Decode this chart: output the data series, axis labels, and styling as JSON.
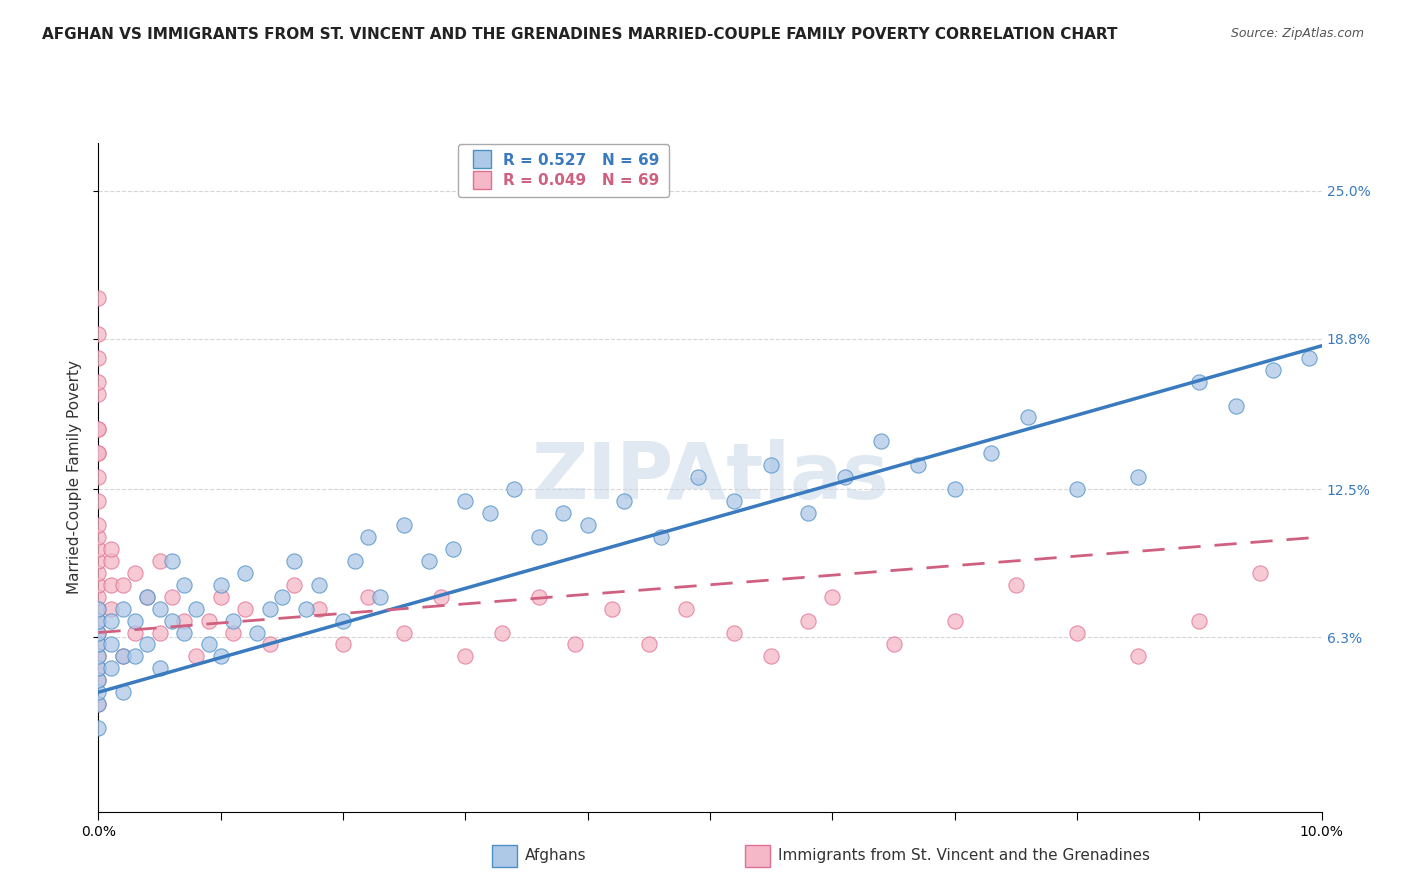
{
  "title": "AFGHAN VS IMMIGRANTS FROM ST. VINCENT AND THE GRENADINES MARRIED-COUPLE FAMILY POVERTY CORRELATION CHART",
  "source": "Source: ZipAtlas.com",
  "ylabel": "Married-Couple Family Poverty",
  "xlim": [
    0.0,
    10.0
  ],
  "ylim": [
    -1.0,
    27.0
  ],
  "ytick_positions": [
    6.3,
    12.5,
    18.8,
    25.0
  ],
  "ytick_labels": [
    "6.3%",
    "12.5%",
    "18.8%",
    "25.0%"
  ],
  "xtick_positions": [
    0.0,
    2.5,
    5.0,
    7.5,
    10.0
  ],
  "legend_r1": "R = 0.527",
  "legend_n1": "N = 69",
  "legend_r2": "R = 0.049",
  "legend_n2": "N = 69",
  "blue_fill": "#aec8e8",
  "blue_edge": "#4a90c4",
  "pink_fill": "#f4b8c8",
  "pink_edge": "#e07090",
  "blue_line": "#3a7abf",
  "pink_line": "#d06080",
  "watermark": "ZIPAtlas",
  "afghans_x": [
    0.0,
    0.0,
    0.0,
    0.0,
    0.0,
    0.0,
    0.0,
    0.0,
    0.0,
    0.0,
    0.1,
    0.1,
    0.1,
    0.2,
    0.2,
    0.2,
    0.3,
    0.3,
    0.4,
    0.4,
    0.5,
    0.5,
    0.6,
    0.6,
    0.7,
    0.7,
    0.8,
    0.9,
    1.0,
    1.0,
    1.1,
    1.2,
    1.3,
    1.4,
    1.5,
    1.6,
    1.7,
    1.8,
    2.0,
    2.1,
    2.2,
    2.3,
    2.5,
    2.7,
    2.9,
    3.0,
    3.2,
    3.4,
    3.6,
    3.8,
    4.0,
    4.3,
    4.6,
    4.9,
    5.2,
    5.5,
    5.8,
    6.1,
    6.4,
    6.7,
    7.0,
    7.3,
    7.6,
    8.0,
    8.5,
    9.0,
    9.3,
    9.6,
    9.9
  ],
  "afghans_y": [
    3.5,
    4.0,
    4.5,
    5.0,
    5.5,
    6.0,
    6.5,
    7.0,
    7.5,
    2.5,
    5.0,
    6.0,
    7.0,
    5.5,
    7.5,
    4.0,
    5.5,
    7.0,
    6.0,
    8.0,
    5.0,
    7.5,
    7.0,
    9.5,
    6.5,
    8.5,
    7.5,
    6.0,
    5.5,
    8.5,
    7.0,
    9.0,
    6.5,
    7.5,
    8.0,
    9.5,
    7.5,
    8.5,
    7.0,
    9.5,
    10.5,
    8.0,
    11.0,
    9.5,
    10.0,
    12.0,
    11.5,
    12.5,
    10.5,
    11.5,
    11.0,
    12.0,
    10.5,
    13.0,
    12.0,
    13.5,
    11.5,
    13.0,
    14.5,
    13.5,
    12.5,
    14.0,
    15.5,
    12.5,
    13.0,
    17.0,
    16.0,
    17.5,
    18.0
  ],
  "svg_x": [
    0.0,
    0.0,
    0.0,
    0.0,
    0.0,
    0.0,
    0.0,
    0.0,
    0.0,
    0.0,
    0.0,
    0.0,
    0.0,
    0.0,
    0.0,
    0.0,
    0.0,
    0.0,
    0.0,
    0.0,
    0.1,
    0.1,
    0.1,
    0.1,
    0.2,
    0.2,
    0.3,
    0.3,
    0.4,
    0.5,
    0.5,
    0.6,
    0.7,
    0.8,
    0.9,
    1.0,
    1.1,
    1.2,
    1.4,
    1.6,
    1.8,
    2.0,
    2.2,
    2.5,
    2.8,
    3.0,
    3.3,
    3.6,
    3.9,
    4.2,
    4.5,
    4.8,
    5.2,
    5.5,
    5.8,
    6.0,
    6.5,
    7.0,
    7.5,
    8.0,
    8.5,
    9.0,
    9.5,
    0.0,
    0.0,
    0.0,
    0.0,
    0.0,
    0.0
  ],
  "svg_y": [
    5.5,
    6.0,
    6.5,
    7.0,
    7.5,
    8.0,
    8.5,
    9.0,
    9.5,
    10.0,
    10.5,
    11.0,
    12.0,
    13.0,
    14.0,
    15.0,
    16.5,
    4.5,
    5.0,
    3.5,
    7.5,
    8.5,
    9.5,
    10.0,
    5.5,
    8.5,
    6.5,
    9.0,
    8.0,
    6.5,
    9.5,
    8.0,
    7.0,
    5.5,
    7.0,
    8.0,
    6.5,
    7.5,
    6.0,
    8.5,
    7.5,
    6.0,
    8.0,
    6.5,
    8.0,
    5.5,
    6.5,
    8.0,
    6.0,
    7.5,
    6.0,
    7.5,
    6.5,
    5.5,
    7.0,
    8.0,
    6.0,
    7.0,
    8.5,
    6.5,
    5.5,
    7.0,
    9.0,
    19.0,
    18.0,
    17.0,
    20.5,
    15.0,
    14.0
  ],
  "blue_trend_x0": 0.0,
  "blue_trend_x1": 10.0,
  "blue_trend_y0": 4.0,
  "blue_trend_y1": 18.5,
  "pink_trend_x0": 0.0,
  "pink_trend_x1": 10.0,
  "pink_trend_y0": 6.5,
  "pink_trend_y1": 10.5,
  "grid_color": "#cccccc",
  "background_color": "#ffffff",
  "title_fontsize": 11,
  "axis_label_fontsize": 11,
  "tick_fontsize": 10,
  "marker_size": 120,
  "legend_fontsize": 11
}
